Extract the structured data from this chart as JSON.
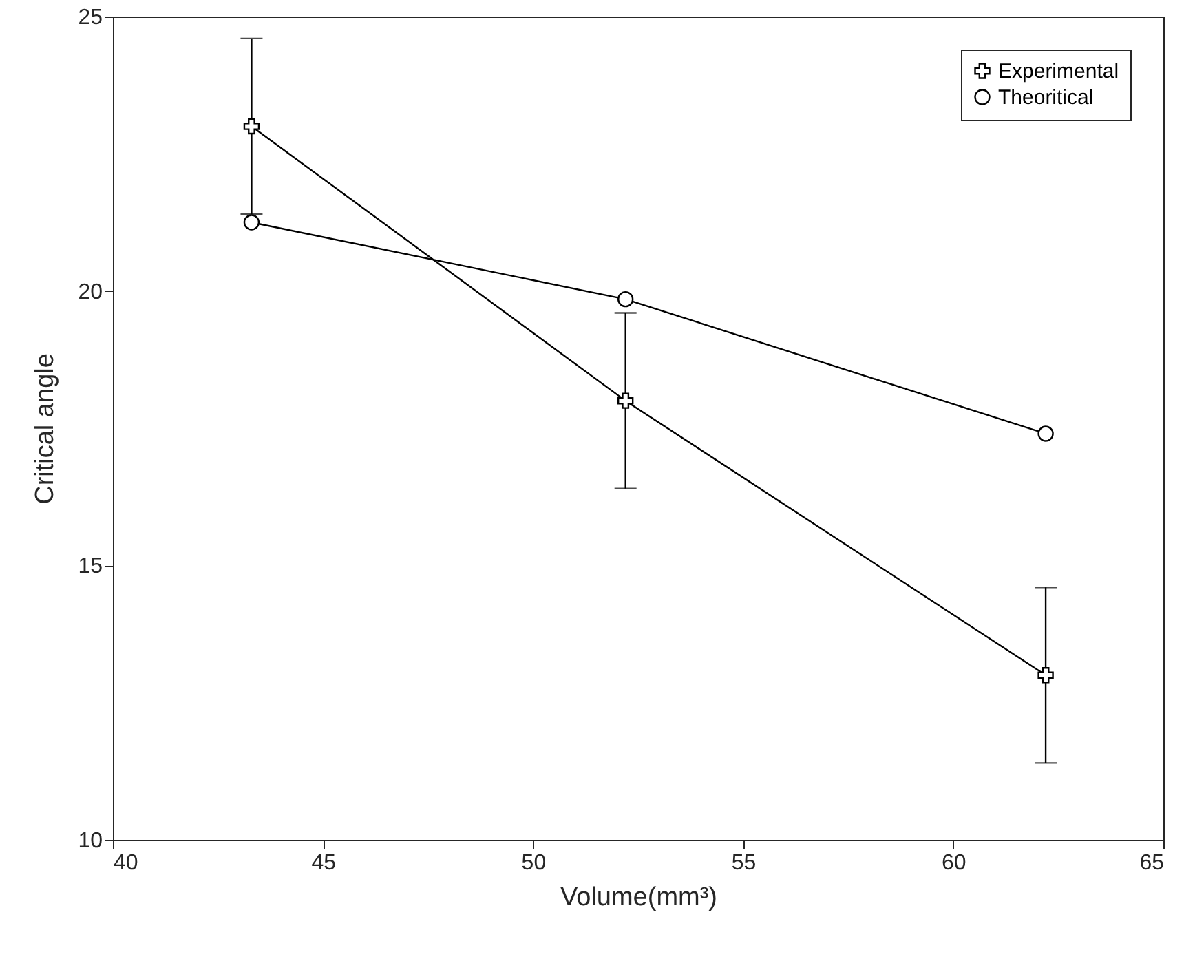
{
  "chart_data": {
    "type": "line",
    "xlabel": "Volume(mm³)",
    "ylabel": "Critical angle",
    "x": [
      43.3,
      52.2,
      62.2
    ],
    "series": [
      {
        "name": "Experimental",
        "color": "#000000",
        "marker": "cross",
        "values": [
          23,
          18,
          13
        ],
        "errors": [
          1.6,
          1.6,
          1.6
        ]
      },
      {
        "name": "Theoritical",
        "color": "#000000",
        "marker": "circle",
        "values": [
          21.25,
          19.85,
          17.4
        ]
      }
    ],
    "xlim": [
      40,
      65
    ],
    "xticks": [
      40,
      45,
      50,
      55,
      60,
      65
    ],
    "ylim": [
      10,
      25
    ],
    "yticks": [
      10,
      15,
      20,
      25
    ],
    "grid": false,
    "legend": "top right",
    "line_style": "solid"
  }
}
